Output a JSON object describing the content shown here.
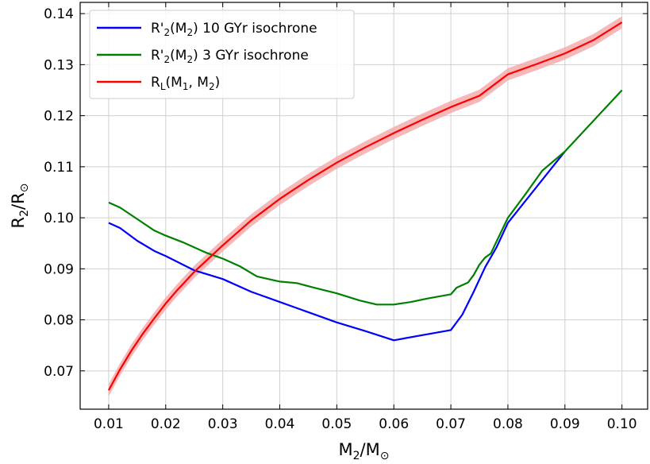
{
  "chart_data": {
    "type": "line",
    "xlabel": {
      "base": "M",
      "sub": "2",
      "sep": "/",
      "base2": "M",
      "sub2": "⊙"
    },
    "ylabel": {
      "base": "R",
      "sub": "2",
      "sep": "/",
      "base2": "R",
      "sub2": "⊙"
    },
    "xlim": [
      0.005,
      0.1045
    ],
    "ylim": [
      0.0625,
      0.1422
    ],
    "xticks": [
      0.01,
      0.02,
      0.03,
      0.04,
      0.05,
      0.06,
      0.07,
      0.08,
      0.09,
      0.1
    ],
    "xtick_labels": [
      "0.01",
      "0.02",
      "0.03",
      "0.04",
      "0.05",
      "0.06",
      "0.07",
      "0.08",
      "0.09",
      "0.10"
    ],
    "yticks": [
      0.07,
      0.08,
      0.09,
      0.1,
      0.11,
      0.12,
      0.13,
      0.14
    ],
    "ytick_labels": [
      "0.07",
      "0.08",
      "0.09",
      "0.10",
      "0.11",
      "0.12",
      "0.13",
      "0.14"
    ],
    "grid": true,
    "legend_position": "top-left",
    "series": [
      {
        "name": {
          "pre": "R'",
          "sub1": "2",
          "mid": "(M",
          "sub2": "2",
          "post": ") 10 GYr isochrone"
        },
        "color": "#0000ff",
        "x": [
          0.01,
          0.012,
          0.015,
          0.018,
          0.02,
          0.025,
          0.03,
          0.035,
          0.04,
          0.045,
          0.05,
          0.055,
          0.06,
          0.065,
          0.07,
          0.072,
          0.074,
          0.076,
          0.078,
          0.08,
          0.085,
          0.09
        ],
        "y": [
          0.099,
          0.098,
          0.0955,
          0.0935,
          0.0925,
          0.0897,
          0.088,
          0.0855,
          0.0835,
          0.0815,
          0.0795,
          0.0778,
          0.076,
          0.077,
          0.078,
          0.081,
          0.0855,
          0.0903,
          0.0942,
          0.099,
          0.106,
          0.113
        ]
      },
      {
        "name": {
          "pre": "R'",
          "sub1": "2",
          "mid": "(M",
          "sub2": "2",
          "post": ") 3 GYr isochrone"
        },
        "color": "#008000",
        "x": [
          0.01,
          0.012,
          0.014,
          0.016,
          0.018,
          0.02,
          0.023,
          0.027,
          0.03,
          0.033,
          0.036,
          0.04,
          0.043,
          0.046,
          0.05,
          0.054,
          0.057,
          0.06,
          0.063,
          0.066,
          0.07,
          0.071,
          0.073,
          0.074,
          0.075,
          0.076,
          0.077,
          0.08,
          0.083,
          0.086,
          0.09,
          0.095,
          0.1
        ],
        "y": [
          0.103,
          0.102,
          0.1005,
          0.099,
          0.0975,
          0.0965,
          0.0952,
          0.0932,
          0.092,
          0.0905,
          0.0885,
          0.0875,
          0.0872,
          0.0863,
          0.0852,
          0.0838,
          0.083,
          0.083,
          0.0835,
          0.0842,
          0.085,
          0.0863,
          0.0873,
          0.0888,
          0.0908,
          0.0922,
          0.093,
          0.1,
          0.1045,
          0.1092,
          0.113,
          0.119,
          0.125
        ]
      },
      {
        "name": {
          "pre": "R",
          "sub1": "L",
          "mid": "(M",
          "sub2": "1",
          "post2": ", M",
          "sub3": "2",
          "post": ")"
        },
        "color": "#ff0000",
        "band_color": "#f4a6a6",
        "band_halfwidth": 0.0012,
        "x": [
          0.01,
          0.012,
          0.014,
          0.016,
          0.018,
          0.02,
          0.022,
          0.025,
          0.03,
          0.035,
          0.04,
          0.045,
          0.05,
          0.055,
          0.06,
          0.065,
          0.07,
          0.075,
          0.08,
          0.085,
          0.09,
          0.095,
          0.1
        ],
        "y": [
          0.0662,
          0.0703,
          0.074,
          0.0773,
          0.0803,
          0.0832,
          0.0858,
          0.0894,
          0.0946,
          0.0995,
          0.1037,
          0.1074,
          0.1108,
          0.1138,
          0.1166,
          0.1192,
          0.1217,
          0.1239,
          0.1281,
          0.1301,
          0.1322,
          0.1348,
          0.1383
        ]
      }
    ]
  }
}
